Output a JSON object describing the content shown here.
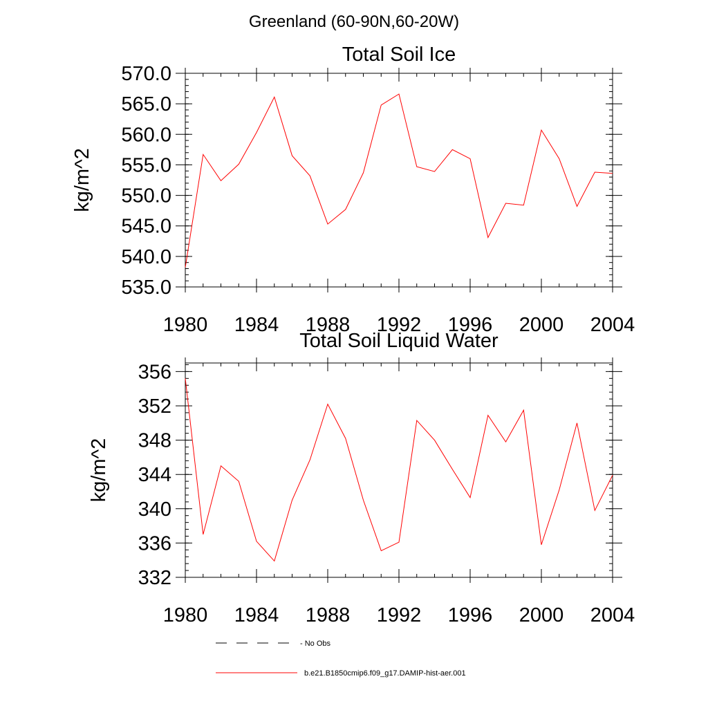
{
  "figure": {
    "title": "Greenland (60-90N,60-20W)"
  },
  "legend": [
    {
      "label": "No Obs",
      "style": "dashed",
      "color": "#000000"
    },
    {
      "label": "b.e21.B1850cmip6.f09_g17.DAMIP-hist-aer.001",
      "style": "solid",
      "color": "#ff0000"
    }
  ],
  "chart_data": [
    {
      "type": "line",
      "title": "Total Soil Ice",
      "ylabel": "kg/m^2",
      "xlim": [
        1980,
        2004
      ],
      "ylim": [
        535,
        570
      ],
      "x_ticks": [
        1980,
        1984,
        1988,
        1992,
        1996,
        2000,
        2004
      ],
      "y_ticks": [
        535.0,
        540.0,
        545.0,
        550.0,
        555.0,
        560.0,
        565.0,
        570.0
      ],
      "y_tick_labels": [
        "535.0",
        "540.0",
        "545.0",
        "550.0",
        "555.0",
        "560.0",
        "565.0",
        "570.0"
      ],
      "series": [
        {
          "name": "b.e21.B1850cmip6.f09_g17.DAMIP-hist-aer.001",
          "color": "#ff0000",
          "x": [
            1980,
            1981,
            1982,
            1983,
            1984,
            1985,
            1986,
            1987,
            1988,
            1989,
            1990,
            1991,
            1992,
            1993,
            1994,
            1995,
            1996,
            1997,
            1998,
            1999,
            2000,
            2001,
            2002,
            2003,
            2004
          ],
          "values": [
            538.2,
            556.7,
            552.4,
            555.1,
            560.3,
            566.1,
            556.5,
            553.2,
            545.3,
            547.7,
            553.7,
            564.8,
            566.6,
            554.7,
            553.9,
            557.5,
            556.0,
            543.1,
            548.7,
            548.4,
            560.7,
            556.0,
            548.2,
            553.8,
            553.6
          ]
        }
      ]
    },
    {
      "type": "line",
      "title": "Total Soil Liquid Water",
      "ylabel": "kg/m^2",
      "xlim": [
        1980,
        2004
      ],
      "ylim": [
        332,
        357
      ],
      "x_ticks": [
        1980,
        1984,
        1988,
        1992,
        1996,
        2000,
        2004
      ],
      "y_ticks": [
        332,
        336,
        340,
        344,
        348,
        352,
        356
      ],
      "y_tick_labels": [
        "332",
        "336",
        "340",
        "344",
        "348",
        "352",
        "356"
      ],
      "series": [
        {
          "name": "b.e21.B1850cmip6.f09_g17.DAMIP-hist-aer.001",
          "color": "#ff0000",
          "x": [
            1980,
            1981,
            1982,
            1983,
            1984,
            1985,
            1986,
            1987,
            1988,
            1989,
            1990,
            1991,
            1992,
            1993,
            1994,
            1995,
            1996,
            1997,
            1998,
            1999,
            2000,
            2001,
            2002,
            2003,
            2004
          ],
          "values": [
            355.2,
            337.0,
            345.0,
            343.2,
            336.2,
            333.9,
            341.0,
            345.7,
            352.2,
            348.2,
            341.0,
            335.1,
            336.1,
            350.3,
            348.0,
            344.6,
            341.3,
            350.9,
            347.8,
            351.5,
            335.8,
            342.2,
            350.0,
            339.8,
            343.9
          ]
        }
      ]
    }
  ]
}
